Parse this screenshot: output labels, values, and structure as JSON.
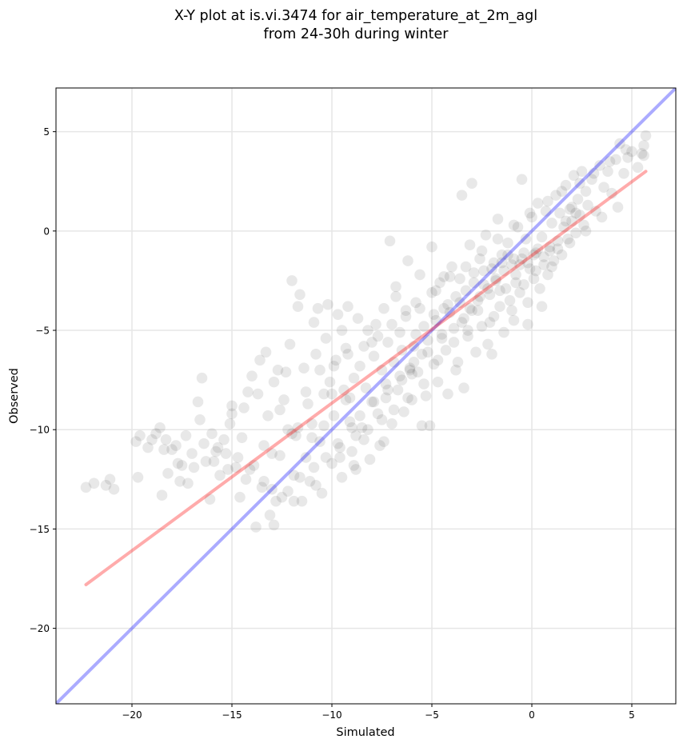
{
  "chart_data": {
    "type": "scatter",
    "title": "X-Y plot at is.vi.3474 for air_temperature_at_2m_agl",
    "subtitle": "from 24-30h during winter",
    "xlabel": "Simulated",
    "ylabel": "Observed",
    "xlim": [
      -23.8,
      7.2
    ],
    "ylim": [
      -23.8,
      7.2
    ],
    "xticks": [
      -20,
      -15,
      -10,
      -5,
      0,
      5
    ],
    "yticks": [
      -20,
      -15,
      -10,
      -5,
      0,
      5
    ],
    "xtick_labels": [
      "−20",
      "−15",
      "−10",
      "−5",
      "0",
      "5"
    ],
    "ytick_labels": [
      "−20",
      "−15",
      "−10",
      "−5",
      "0",
      "5"
    ],
    "grid": true,
    "point_color": "#000000",
    "identity_line": {
      "color": "#0000ff",
      "from": [
        -23.8,
        -23.8
      ],
      "to": [
        7.2,
        7.2
      ]
    },
    "fit_line": {
      "color": "#ff0000",
      "from": [
        -22.3,
        -17.8
      ],
      "to": [
        5.7,
        3.0
      ]
    },
    "points": [
      [
        -22.3,
        -12.9
      ],
      [
        -21.9,
        -12.7
      ],
      [
        -21.3,
        -12.8
      ],
      [
        -21.1,
        -12.5
      ],
      [
        -20.9,
        -13.0
      ],
      [
        -19.8,
        -10.6
      ],
      [
        -19.7,
        -12.4
      ],
      [
        -19.6,
        -10.3
      ],
      [
        -19.0,
        -10.5
      ],
      [
        -18.8,
        -10.2
      ],
      [
        -18.6,
        -9.9
      ],
      [
        -18.5,
        -13.3
      ],
      [
        -18.3,
        -10.5
      ],
      [
        -18.2,
        -12.2
      ],
      [
        -18.0,
        -11.0
      ],
      [
        -17.8,
        -10.8
      ],
      [
        -17.6,
        -12.6
      ],
      [
        -17.5,
        -11.8
      ],
      [
        -17.3,
        -10.3
      ],
      [
        -17.2,
        -12.7
      ],
      [
        -16.9,
        -11.9
      ],
      [
        -16.7,
        -8.6
      ],
      [
        -16.6,
        -9.5
      ],
      [
        -16.5,
        -7.4
      ],
      [
        -16.4,
        -10.7
      ],
      [
        -16.1,
        -13.5
      ],
      [
        -15.9,
        -11.6
      ],
      [
        -15.7,
        -10.9
      ],
      [
        -15.6,
        -12.3
      ],
      [
        -15.4,
        -10.5
      ],
      [
        -15.3,
        -11.2
      ],
      [
        -15.1,
        -9.7
      ],
      [
        -15.0,
        -8.8
      ],
      [
        -14.8,
        -11.9
      ],
      [
        -14.6,
        -13.4
      ],
      [
        -14.5,
        -10.4
      ],
      [
        -14.3,
        -12.5
      ],
      [
        -14.2,
        -8.1
      ],
      [
        -14.0,
        -7.3
      ],
      [
        -13.9,
        -11.8
      ],
      [
        -13.8,
        -14.9
      ],
      [
        -13.6,
        -6.5
      ],
      [
        -13.5,
        -12.9
      ],
      [
        -13.4,
        -10.8
      ],
      [
        -13.3,
        -6.1
      ],
      [
        -13.2,
        -9.3
      ],
      [
        -13.1,
        -14.3
      ],
      [
        -13.0,
        -13.0
      ],
      [
        -12.9,
        -14.8
      ],
      [
        -12.7,
        -7.0
      ],
      [
        -12.6,
        -11.3
      ],
      [
        -12.5,
        -13.4
      ],
      [
        -12.4,
        -8.5
      ],
      [
        -12.3,
        -7.1
      ],
      [
        -12.2,
        -10.0
      ],
      [
        -12.1,
        -5.7
      ],
      [
        -12.0,
        -2.5
      ],
      [
        -11.9,
        -12.3
      ],
      [
        -11.8,
        -10.3
      ],
      [
        -11.7,
        -3.8
      ],
      [
        -11.6,
        -3.2
      ],
      [
        -11.5,
        -13.6
      ],
      [
        -11.4,
        -6.9
      ],
      [
        -11.3,
        -11.4
      ],
      [
        -11.2,
        -8.7
      ],
      [
        -11.1,
        -12.6
      ],
      [
        -11.0,
        -9.7
      ],
      [
        -10.9,
        -4.6
      ],
      [
        -10.8,
        -6.2
      ],
      [
        -10.7,
        -3.9
      ],
      [
        -10.6,
        -10.6
      ],
      [
        -10.5,
        -13.2
      ],
      [
        -10.4,
        -8.2
      ],
      [
        -10.3,
        -5.4
      ],
      [
        -10.2,
        -3.7
      ],
      [
        -10.1,
        -7.6
      ],
      [
        -10.0,
        -11.7
      ],
      [
        -9.9,
        -9.3
      ],
      [
        -9.8,
        -6.5
      ],
      [
        -9.7,
        -4.2
      ],
      [
        -9.6,
        -10.9
      ],
      [
        -9.5,
        -12.4
      ],
      [
        -9.4,
        -8.0
      ],
      [
        -9.3,
        -5.9
      ],
      [
        -9.2,
        -3.8
      ],
      [
        -9.1,
        -9.6
      ],
      [
        -9.0,
        -11.1
      ],
      [
        -8.9,
        -7.4
      ],
      [
        -8.8,
        -12.0
      ],
      [
        -8.7,
        -4.4
      ],
      [
        -8.6,
        -6.8
      ],
      [
        -8.5,
        -9.9
      ],
      [
        -8.4,
        -10.5
      ],
      [
        -8.3,
        -7.9
      ],
      [
        -8.2,
        -5.0
      ],
      [
        -8.1,
        -11.5
      ],
      [
        -8.0,
        -8.6
      ],
      [
        -7.9,
        -6.3
      ],
      [
        -7.8,
        -4.7
      ],
      [
        -7.7,
        -9.2
      ],
      [
        -7.6,
        -10.8
      ],
      [
        -7.5,
        -7.0
      ],
      [
        -7.4,
        -3.9
      ],
      [
        -7.3,
        -8.4
      ],
      [
        -7.2,
        -5.6
      ],
      [
        -7.1,
        -0.5
      ],
      [
        -7.0,
        -9.7
      ],
      [
        -6.9,
        -6.6
      ],
      [
        -6.8,
        -2.8
      ],
      [
        -6.7,
        -8.0
      ],
      [
        -6.6,
        -5.1
      ],
      [
        -6.5,
        -7.5
      ],
      [
        -6.4,
        -9.1
      ],
      [
        -6.3,
        -4.3
      ],
      [
        -6.2,
        -1.5
      ],
      [
        -6.1,
        -6.9
      ],
      [
        -6.0,
        -8.5
      ],
      [
        -5.9,
        -5.8
      ],
      [
        -5.8,
        -3.6
      ],
      [
        -5.7,
        -7.1
      ],
      [
        -5.6,
        -2.2
      ],
      [
        -5.5,
        -6.2
      ],
      [
        -5.4,
        -4.8
      ],
      [
        -5.3,
        -8.3
      ],
      [
        -5.2,
        -5.5
      ],
      [
        -5.1,
        -9.8
      ],
      [
        -5.0,
        -3.1
      ],
      [
        -4.9,
        -6.7
      ],
      [
        -4.8,
        -4.5
      ],
      [
        -4.7,
        -7.6
      ],
      [
        -4.6,
        -2.6
      ],
      [
        -4.5,
        -5.2
      ],
      [
        -4.4,
        -3.9
      ],
      [
        -4.3,
        -6.0
      ],
      [
        -4.2,
        -8.2
      ],
      [
        -4.1,
        -4.1
      ],
      [
        -4.0,
        -1.8
      ],
      [
        -3.9,
        -5.6
      ],
      [
        -3.8,
        -3.3
      ],
      [
        -3.7,
        -6.6
      ],
      [
        -3.6,
        -2.4
      ],
      [
        -3.5,
        -4.6
      ],
      [
        -3.4,
        -7.9
      ],
      [
        -3.3,
        -3.0
      ],
      [
        -3.2,
        -5.3
      ],
      [
        -3.1,
        -0.7
      ],
      [
        -3.0,
        -4.0
      ],
      [
        -2.9,
        -2.1
      ],
      [
        -2.8,
        -6.1
      ],
      [
        -2.7,
        -3.5
      ],
      [
        -2.6,
        -1.4
      ],
      [
        -2.5,
        -4.8
      ],
      [
        -2.4,
        -2.7
      ],
      [
        -2.3,
        -0.2
      ],
      [
        -2.2,
        -5.7
      ],
      [
        -2.1,
        -3.2
      ],
      [
        -2.0,
        -1.9
      ],
      [
        -1.9,
        -4.3
      ],
      [
        -1.8,
        -2.5
      ],
      [
        -1.7,
        0.6
      ],
      [
        -1.6,
        -3.8
      ],
      [
        -1.5,
        -1.2
      ],
      [
        -1.4,
        -5.1
      ],
      [
        -1.3,
        -2.9
      ],
      [
        -1.2,
        -0.6
      ],
      [
        -1.1,
        -3.5
      ],
      [
        -1.0,
        -1.7
      ],
      [
        -0.9,
        -4.5
      ],
      [
        -0.8,
        -2.2
      ],
      [
        -0.7,
        0.2
      ],
      [
        -0.6,
        -3.1
      ],
      [
        -0.5,
        -1.4
      ],
      [
        -0.4,
        -2.7
      ],
      [
        -0.3,
        -0.4
      ],
      [
        -0.2,
        -3.6
      ],
      [
        -0.1,
        -1.9
      ],
      [
        0.0,
        0.7
      ],
      [
        0.1,
        -2.4
      ],
      [
        0.2,
        -1.1
      ],
      [
        0.3,
        1.4
      ],
      [
        0.4,
        -2.9
      ],
      [
        0.5,
        -0.3
      ],
      [
        0.6,
        -1.7
      ],
      [
        0.7,
        1.0
      ],
      [
        0.8,
        -2.2
      ],
      [
        0.9,
        -0.8
      ],
      [
        1.0,
        0.4
      ],
      [
        1.1,
        -1.5
      ],
      [
        1.2,
        1.8
      ],
      [
        1.3,
        -0.5
      ],
      [
        1.4,
        0.9
      ],
      [
        1.5,
        -1.2
      ],
      [
        1.6,
        0.2
      ],
      [
        1.7,
        2.3
      ],
      [
        1.8,
        -0.4
      ],
      [
        1.9,
        1.1
      ],
      [
        2.0,
        0.5
      ],
      [
        2.1,
        2.8
      ],
      [
        2.2,
        -0.1
      ],
      [
        2.3,
        1.6
      ],
      [
        2.4,
        0.8
      ],
      [
        2.5,
        3.0
      ],
      [
        2.6,
        0.3
      ],
      [
        2.7,
        2.0
      ],
      [
        2.8,
        1.3
      ],
      [
        3.0,
        2.6
      ],
      [
        3.2,
        1.0
      ],
      [
        3.4,
        3.3
      ],
      [
        3.6,
        2.2
      ],
      [
        3.8,
        3.0
      ],
      [
        4.0,
        1.9
      ],
      [
        4.2,
        3.6
      ],
      [
        4.4,
        4.4
      ],
      [
        4.6,
        2.9
      ],
      [
        4.8,
        3.7
      ],
      [
        5.0,
        4.0
      ],
      [
        5.3,
        3.2
      ],
      [
        5.6,
        3.8
      ],
      [
        5.7,
        4.8
      ],
      [
        -3.0,
        2.4
      ],
      [
        -3.5,
        1.8
      ],
      [
        -0.5,
        2.6
      ],
      [
        -8.0,
        -5.6
      ],
      [
        -9.5,
        -5.0
      ],
      [
        -6.8,
        -3.3
      ],
      [
        -5.0,
        -0.8
      ],
      [
        -4.4,
        -2.3
      ],
      [
        -1.0,
        -4.0
      ],
      [
        -0.2,
        -4.7
      ],
      [
        0.5,
        -3.8
      ],
      [
        -2.0,
        -6.2
      ],
      [
        -3.8,
        -7.0
      ],
      [
        -5.5,
        -9.8
      ],
      [
        -6.1,
        -7.0
      ],
      [
        -6.0,
        -7.2
      ],
      [
        -7.5,
        -9.5
      ],
      [
        -8.8,
        -10.3
      ],
      [
        -9.3,
        -8.5
      ],
      [
        -10.4,
        -9.8
      ],
      [
        -11.0,
        -10.4
      ],
      [
        -12.0,
        -10.2
      ],
      [
        -11.7,
        -9.9
      ],
      [
        -13.0,
        -11.2
      ],
      [
        -10.0,
        -8.2
      ],
      [
        -9.1,
        -8.4
      ],
      [
        -7.3,
        -7.7
      ],
      [
        -6.5,
        -6.0
      ],
      [
        -5.8,
        -5.2
      ],
      [
        -4.9,
        -4.2
      ],
      [
        -4.2,
        -3.7
      ],
      [
        -3.6,
        -3.6
      ],
      [
        -2.9,
        -2.6
      ],
      [
        -2.4,
        -2.0
      ],
      [
        -1.9,
        -1.6
      ],
      [
        -1.5,
        -1.6
      ],
      [
        -1.2,
        -1.2
      ],
      [
        -0.9,
        -1.4
      ],
      [
        -0.6,
        -1.7
      ],
      [
        -0.4,
        -1.1
      ],
      [
        -0.2,
        -1.6
      ],
      [
        0.1,
        -1.2
      ],
      [
        0.3,
        -0.9
      ],
      [
        0.6,
        -1.3
      ],
      [
        0.9,
        -1.0
      ],
      [
        1.3,
        -0.9
      ],
      [
        1.7,
        0.5
      ],
      [
        2.0,
        1.2
      ],
      [
        2.2,
        0.9
      ],
      [
        -1.4,
        -2.0
      ],
      [
        -1.8,
        -2.4
      ],
      [
        -2.2,
        -2.9
      ],
      [
        -2.6,
        -3.3
      ],
      [
        -3.1,
        -3.9
      ],
      [
        -3.4,
        -4.4
      ],
      [
        -3.9,
        -4.9
      ],
      [
        -4.5,
        -5.4
      ],
      [
        -5.2,
        -6.1
      ],
      [
        -5.9,
        -6.6
      ],
      [
        -6.6,
        -7.3
      ],
      [
        -7.2,
        -8.0
      ],
      [
        -7.9,
        -8.6
      ],
      [
        -8.6,
        -9.3
      ],
      [
        -9.0,
        -9.9
      ],
      [
        -9.7,
        -10.7
      ],
      [
        -10.3,
        -11.4
      ],
      [
        -10.9,
        -11.9
      ],
      [
        -11.6,
        -12.4
      ],
      [
        -12.2,
        -13.1
      ],
      [
        -12.8,
        -13.6
      ],
      [
        -13.4,
        -12.6
      ],
      [
        -14.1,
        -12.0
      ],
      [
        -14.7,
        -11.4
      ],
      [
        -15.2,
        -12.0
      ],
      [
        -15.8,
        -11.1
      ],
      [
        -16.3,
        -11.6
      ],
      [
        -17.0,
        -11.2
      ],
      [
        -17.7,
        -11.7
      ],
      [
        -18.4,
        -11.0
      ],
      [
        -19.2,
        -10.9
      ],
      [
        -16.0,
        -10.2
      ],
      [
        -15.0,
        -9.2
      ],
      [
        -14.4,
        -8.9
      ],
      [
        -13.7,
        -8.2
      ],
      [
        -12.9,
        -7.6
      ],
      [
        -12.6,
        -9.0
      ],
      [
        -11.3,
        -8.1
      ],
      [
        -10.6,
        -7.0
      ],
      [
        -9.9,
        -6.8
      ],
      [
        -9.2,
        -6.2
      ],
      [
        -8.4,
        -5.8
      ],
      [
        -7.7,
        -5.3
      ],
      [
        -7.0,
        -4.7
      ],
      [
        -6.3,
        -4.0
      ],
      [
        -5.6,
        -3.9
      ],
      [
        -4.8,
        -3.0
      ],
      [
        -4.1,
        -2.3
      ],
      [
        -3.3,
        -1.8
      ],
      [
        -2.5,
        -1.0
      ],
      [
        -1.7,
        -0.4
      ],
      [
        -0.9,
        0.3
      ],
      [
        -0.1,
        0.9
      ],
      [
        0.8,
        1.5
      ],
      [
        1.5,
        2.0
      ],
      [
        2.4,
        2.4
      ],
      [
        3.1,
        2.9
      ],
      [
        3.9,
        3.5
      ],
      [
        4.7,
        4.1
      ],
      [
        5.5,
        3.9
      ],
      [
        5.6,
        4.3
      ],
      [
        -2.7,
        -4.0
      ],
      [
        -1.6,
        -3.0
      ],
      [
        -0.8,
        -2.6
      ],
      [
        0.2,
        -2.0
      ],
      [
        1.0,
        -1.8
      ],
      [
        1.9,
        -0.6
      ],
      [
        2.7,
        0.0
      ],
      [
        3.5,
        0.7
      ],
      [
        4.3,
        1.2
      ],
      [
        -6.2,
        -8.4
      ],
      [
        -4.7,
        -6.5
      ],
      [
        -3.2,
        -5.0
      ],
      [
        -2.1,
        -4.6
      ],
      [
        -5.4,
        -7.7
      ],
      [
        -6.9,
        -9.0
      ],
      [
        -8.2,
        -10.0
      ],
      [
        -9.6,
        -11.4
      ],
      [
        -10.8,
        -12.8
      ],
      [
        -11.9,
        -13.6
      ],
      [
        -7.4,
        -10.6
      ],
      [
        -8.9,
        -11.8
      ]
    ]
  }
}
